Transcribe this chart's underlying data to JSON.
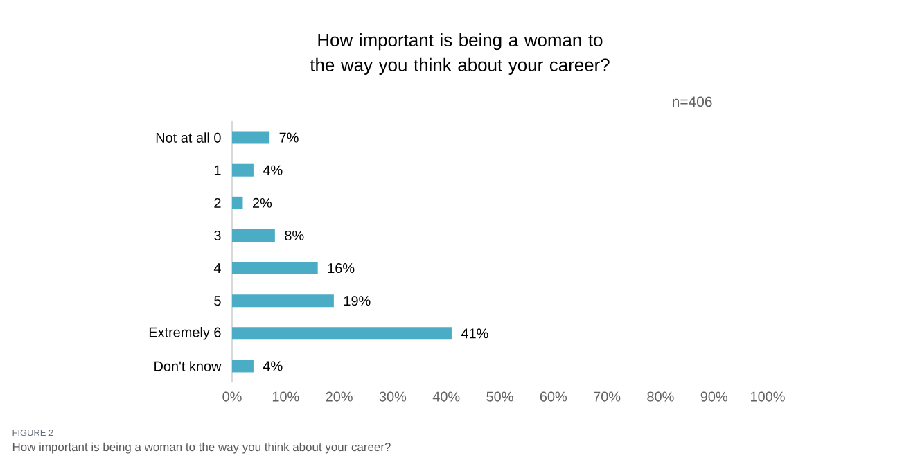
{
  "chart_data": {
    "type": "bar",
    "orientation": "horizontal",
    "title": "How important is being a woman to the way you think about your career?",
    "categories": [
      "Not at all 0",
      "1",
      "2",
      "3",
      "4",
      "5",
      "Extremely 6",
      "Don't know"
    ],
    "values": [
      7,
      4,
      2,
      8,
      16,
      19,
      41,
      4
    ],
    "value_labels": [
      "7%",
      "4%",
      "2%",
      "8%",
      "16%",
      "19%",
      "41%",
      "4%"
    ],
    "color": "#4bacc6",
    "xlim": [
      0,
      100
    ],
    "xticks": [
      {
        "value": 0,
        "label": "0%"
      },
      {
        "value": 10,
        "label": "10%"
      },
      {
        "value": 20,
        "label": "20%"
      },
      {
        "value": 30,
        "label": "30%"
      },
      {
        "value": 40,
        "label": "40%"
      },
      {
        "value": 50,
        "label": "50%"
      },
      {
        "value": 60,
        "label": "60%"
      },
      {
        "value": 70,
        "label": "70%"
      },
      {
        "value": 80,
        "label": "80%"
      },
      {
        "value": 90,
        "label": "90%"
      },
      {
        "value": 100,
        "label": "100%"
      }
    ],
    "annotations": [
      "n=406",
      "FIGURE 2",
      "How important is being a woman to the way you think about your career?"
    ]
  }
}
